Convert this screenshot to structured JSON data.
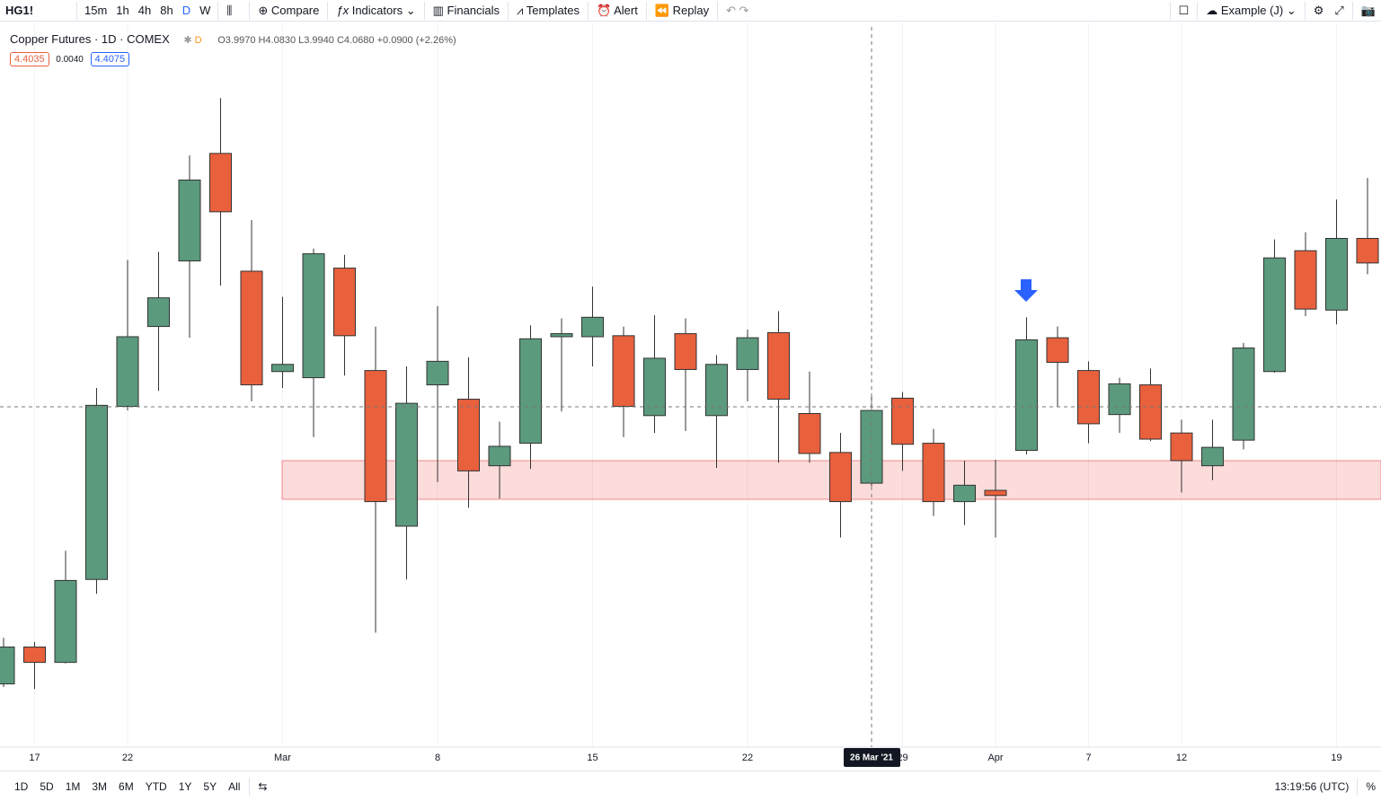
{
  "toolbar": {
    "symbol": "HG1!",
    "intervals": [
      "15m",
      "1h",
      "4h",
      "8h",
      "D",
      "W"
    ],
    "compare": "Compare",
    "indicators": "Indicators",
    "financials": "Financials",
    "templates": "Templates",
    "alert": "Alert",
    "replay": "Replay",
    "layout": "Example (J)"
  },
  "legend": {
    "name": "Copper Futures",
    "interval": "1D",
    "exchange": "COMEX",
    "ohlc": "O3.9970 H4.0830 L3.9940 C4.0680 +0.0900 (+2.26%)",
    "bid": "4.4035",
    "spread": "0.0040",
    "ask": "4.4075"
  },
  "bottom_bar": {
    "ranges": [
      "1D",
      "5D",
      "1M",
      "3M",
      "6M",
      "YTD",
      "1Y",
      "5Y",
      "All"
    ],
    "time": "13:19:56 (UTC)",
    "percent": "%"
  },
  "chart_data": {
    "type": "candlestick",
    "up_color": "#5b9a7d",
    "down_color": "#e8603c",
    "grid": true,
    "crosshair_label": "26 Mar '21",
    "ylim": [
      3.741,
      4.4425
    ],
    "categories": [
      null,
      "17",
      null,
      null,
      "22",
      null,
      null,
      null,
      null,
      "Mar",
      null,
      null,
      null,
      null,
      "8",
      null,
      null,
      null,
      null,
      "15",
      null,
      null,
      null,
      null,
      "22",
      null,
      null,
      null,
      null,
      "29",
      null,
      null,
      "Apr",
      null,
      null,
      "7",
      null,
      null,
      "12",
      null,
      null,
      null,
      null,
      "19",
      null
    ],
    "open": [
      3.801,
      3.837,
      3.822,
      3.903,
      4.072,
      4.15,
      4.214,
      4.319,
      4.204,
      4.106,
      4.1,
      4.207,
      4.107,
      3.955,
      4.093,
      4.079,
      4.014,
      4.036,
      4.14,
      4.14,
      4.141,
      4.063,
      4.143,
      4.063,
      4.108,
      4.144,
      4.065,
      4.027,
      3.997,
      4.08,
      4.036,
      3.979,
      3.99,
      4.029,
      4.139,
      4.107,
      4.064,
      4.093,
      4.046,
      4.014,
      4.039,
      4.106,
      4.224,
      4.166,
      4.236
    ],
    "high": [
      3.846,
      3.842,
      3.931,
      4.09,
      4.215,
      4.223,
      4.317,
      4.373,
      4.254,
      4.179,
      4.226,
      4.22,
      4.15,
      4.111,
      4.17,
      4.12,
      4.057,
      4.151,
      4.158,
      4.189,
      4.15,
      4.161,
      4.158,
      4.122,
      4.147,
      4.165,
      4.106,
      4.046,
      4.083,
      4.086,
      4.05,
      4.019,
      4.02,
      4.159,
      4.15,
      4.116,
      4.1,
      4.109,
      4.059,
      4.059,
      4.134,
      4.235,
      4.242,
      4.274,
      4.295
    ],
    "low": [
      3.798,
      3.796,
      3.821,
      3.889,
      4.068,
      4.087,
      4.139,
      4.19,
      4.077,
      4.09,
      4.042,
      4.102,
      3.851,
      3.903,
      3.998,
      3.973,
      3.982,
      4.011,
      4.067,
      4.111,
      4.042,
      4.046,
      4.048,
      4.012,
      4.077,
      4.017,
      4.017,
      3.944,
      3.994,
      4.009,
      3.965,
      3.956,
      3.944,
      4.025,
      4.072,
      4.036,
      4.046,
      4.038,
      3.988,
      4.0,
      4.03,
      4.105,
      4.16,
      4.152,
      4.201
    ],
    "close": [
      3.837,
      3.822,
      3.902,
      4.073,
      4.14,
      4.178,
      4.293,
      4.262,
      4.093,
      4.113,
      4.221,
      4.141,
      3.979,
      4.075,
      4.116,
      4.009,
      4.033,
      4.138,
      4.143,
      4.159,
      4.072,
      4.119,
      4.108,
      4.113,
      4.139,
      4.079,
      4.026,
      3.979,
      4.068,
      4.035,
      3.979,
      3.995,
      3.985,
      4.137,
      4.115,
      4.055,
      4.094,
      4.04,
      4.019,
      4.032,
      4.129,
      4.217,
      4.167,
      4.236,
      4.212
    ]
  }
}
